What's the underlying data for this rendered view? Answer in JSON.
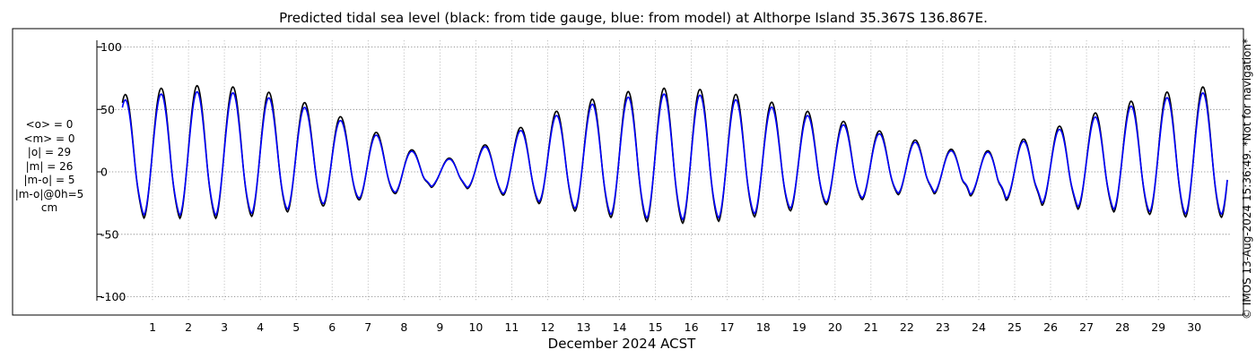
{
  "chart_data": {
    "type": "line",
    "title": "Predicted tidal sea level (black: from tide gauge, blue: from model) at Althorpe Island 35.367S 136.867E.",
    "xlabel": "December 2024 ACST",
    "ylabel": "",
    "xlim": [
      0,
      31
    ],
    "ylim": [
      -110,
      115
    ],
    "grid": true,
    "yticks": [
      -100,
      -50,
      0,
      50,
      100
    ],
    "ytick_labels": [
      "-100",
      "-50",
      "0",
      "50",
      "100"
    ],
    "xticks": [
      1,
      2,
      3,
      4,
      5,
      6,
      7,
      8,
      9,
      10,
      11,
      12,
      13,
      14,
      15,
      16,
      17,
      18,
      19,
      20,
      21,
      22,
      23,
      24,
      25,
      26,
      27,
      28,
      29,
      30
    ],
    "xtick_labels": [
      "1",
      "2",
      "3",
      "4",
      "5",
      "6",
      "7",
      "8",
      "9",
      "10",
      "11",
      "12",
      "13",
      "14",
      "15",
      "16",
      "17",
      "18",
      "19",
      "20",
      "21",
      "22",
      "23",
      "24",
      "25",
      "26",
      "27",
      "28",
      "29",
      "30"
    ],
    "day_peaks": [
      {
        "day": 0,
        "high": 60,
        "low": -37,
        "sec": -8
      },
      {
        "day": 1,
        "high": 66,
        "low": -38,
        "sec": -12
      },
      {
        "day": 2,
        "high": 69,
        "low": -38,
        "sec": -14
      },
      {
        "day": 3,
        "high": 69,
        "low": -38,
        "sec": -16
      },
      {
        "day": 4,
        "high": 66,
        "low": -36,
        "sec": -18
      },
      {
        "day": 5,
        "high": 59,
        "low": -32,
        "sec": -18
      },
      {
        "day": 6,
        "high": 48,
        "low": -27,
        "sec": -18
      },
      {
        "day": 7,
        "high": 36,
        "low": -22,
        "sec": -15
      },
      {
        "day": 8,
        "high": 22,
        "low": -17,
        "sec": -10
      },
      {
        "day": 9,
        "high": 8,
        "low": -12,
        "sec": 5
      },
      {
        "day": 10,
        "high": 17,
        "low": -14,
        "sec": -5
      },
      {
        "day": 11,
        "high": 31,
        "low": -20,
        "sec": -12
      },
      {
        "day": 12,
        "high": 45,
        "low": -27,
        "sec": -15
      },
      {
        "day": 13,
        "high": 56,
        "low": -33,
        "sec": -18
      },
      {
        "day": 14,
        "high": 63,
        "low": -38,
        "sec": -20
      },
      {
        "day": 15,
        "high": 67,
        "low": -41,
        "sec": -22
      },
      {
        "day": 16,
        "high": 67,
        "low": -42,
        "sec": -22
      },
      {
        "day": 17,
        "high": 64,
        "low": -40,
        "sec": -20
      },
      {
        "day": 18,
        "high": 58,
        "low": -36,
        "sec": -18
      },
      {
        "day": 19,
        "high": 51,
        "low": -31,
        "sec": -16
      },
      {
        "day": 20,
        "high": 43,
        "low": -26,
        "sec": -14
      },
      {
        "day": 21,
        "high": 35,
        "low": -22,
        "sec": -12
      },
      {
        "day": 22,
        "high": 28,
        "low": -18,
        "sec": -5
      },
      {
        "day": 23,
        "high": 20,
        "low": -18,
        "sec": 2
      },
      {
        "day": 24,
        "high": 14,
        "low": -20,
        "sec": 10
      },
      {
        "day": 25,
        "high": 23,
        "low": -24,
        "sec": 5
      },
      {
        "day": 26,
        "high": 33,
        "low": -28,
        "sec": 0
      },
      {
        "day": 27,
        "high": 44,
        "low": -31,
        "sec": -10
      },
      {
        "day": 28,
        "high": 54,
        "low": -33,
        "sec": -15
      },
      {
        "day": 29,
        "high": 62,
        "low": -35,
        "sec": -20
      },
      {
        "day": 30,
        "high": 68,
        "low": -37,
        "sec": -22
      }
    ],
    "series": [
      {
        "name": "from tide gauge",
        "color": "#000000",
        "amplitude_factor": 1.0,
        "offset": 0
      },
      {
        "name": "from model",
        "color": "#0000ff",
        "amplitude_factor": 0.93,
        "offset": 0
      }
    ]
  },
  "stats": {
    "lines": [
      "<o> = 0",
      "<m> = 0",
      "|o| = 29",
      "|m| = 26",
      "|m-o| = 5",
      "|m-o|@0h=5",
      "cm"
    ]
  },
  "copyright": "© IMOS 13-Aug-2024 15:36:49. *Not for navigation*"
}
